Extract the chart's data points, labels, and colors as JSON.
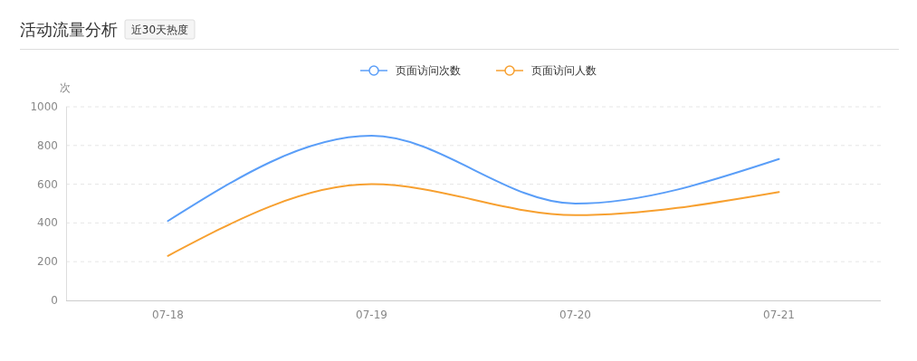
{
  "chart_data": {
    "type": "line",
    "title": "活动流量分析",
    "subtitle": "近30天热度",
    "ylabel": "次",
    "categories": [
      "07-18",
      "07-19",
      "07-20",
      "07-21"
    ],
    "series": [
      {
        "name": "页面访问次数",
        "color": "#5a9ef8",
        "values": [
          410,
          850,
          500,
          730
        ]
      },
      {
        "name": "页面访问人数",
        "color": "#f7a030",
        "values": [
          230,
          600,
          440,
          560
        ]
      }
    ],
    "ylim": [
      0,
      1000
    ],
    "yticks": [
      0,
      200,
      400,
      600,
      800,
      1000
    ],
    "grid": "y",
    "legend": "top",
    "marker": "none",
    "line_style": "solid"
  }
}
